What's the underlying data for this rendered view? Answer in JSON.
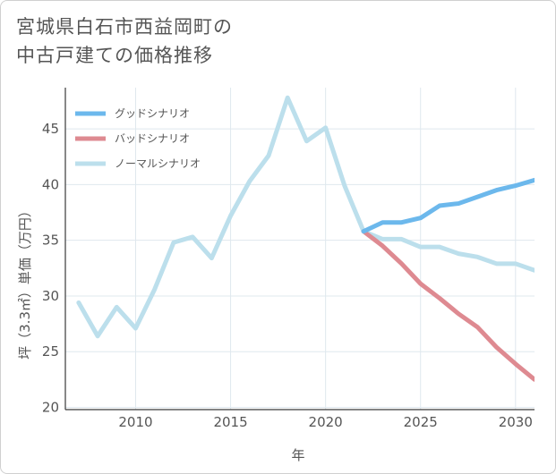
{
  "title": {
    "line1": "宮城県白石市西益岡町の",
    "line2": "中古戸建ての価格推移"
  },
  "chart_data": {
    "type": "line",
    "xlabel": "年",
    "ylabel": "坪（3.3㎡）単価（万円）",
    "xlim": [
      2006.3,
      2031
    ],
    "ylim": [
      19.8,
      48.7
    ],
    "x_ticks": [
      2010,
      2015,
      2020,
      2025,
      2030
    ],
    "y_ticks": [
      20,
      25,
      30,
      35,
      40,
      45
    ],
    "legend_position": "top-left",
    "series": [
      {
        "name": "グッドシナリオ",
        "color": "#6cb8ec",
        "x": [
          2022,
          2023,
          2024,
          2025,
          2026,
          2027,
          2028,
          2029,
          2030,
          2031
        ],
        "values": [
          35.8,
          36.6,
          36.6,
          37.0,
          38.1,
          38.3,
          38.9,
          39.5,
          39.9,
          40.4
        ]
      },
      {
        "name": "バッドシナリオ",
        "color": "#de8a91",
        "x": [
          2022,
          2023,
          2024,
          2025,
          2026,
          2027,
          2028,
          2029,
          2030,
          2031
        ],
        "values": [
          35.8,
          34.5,
          32.9,
          31.1,
          29.8,
          28.4,
          27.2,
          25.4,
          23.9,
          22.5
        ]
      },
      {
        "name": "ノーマルシナリオ",
        "color": "#bcdfec",
        "x": [
          2007,
          2008,
          2009,
          2010,
          2011,
          2012,
          2013,
          2014,
          2015,
          2016,
          2017,
          2018,
          2019,
          2020,
          2021,
          2022,
          2023,
          2024,
          2025,
          2026,
          2027,
          2028,
          2029,
          2030,
          2031
        ],
        "values": [
          29.4,
          26.4,
          29.0,
          27.1,
          30.6,
          34.8,
          35.3,
          33.4,
          37.2,
          40.3,
          42.6,
          47.8,
          43.9,
          45.1,
          39.9,
          35.8,
          35.1,
          35.1,
          34.4,
          34.4,
          33.8,
          33.5,
          32.9,
          32.9,
          32.3
        ]
      }
    ]
  }
}
